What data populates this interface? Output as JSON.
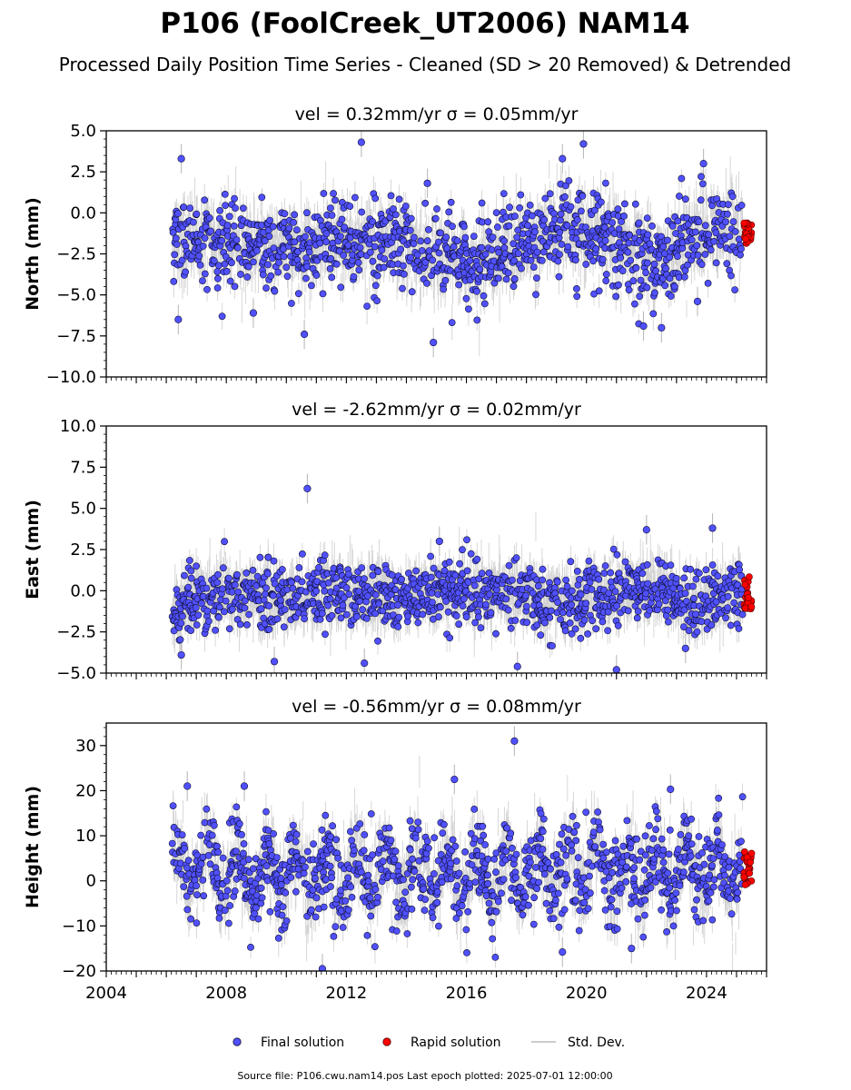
{
  "title": "P106 (FoolCreek_UT2006) NAM14",
  "subtitle": "Processed Daily Position Time Series - Cleaned (SD > 20 Removed) & Detrended",
  "footer": "Source file: P106.cwu.nam14.pos  Last epoch plotted: 2025-07-01 12:00:00",
  "colors": {
    "final_fill": "#5050ff",
    "final_edge": "#111133",
    "rapid_fill": "#ff0000",
    "rapid_edge": "#550000",
    "stddev": "#bbbbbb"
  },
  "chart_data": [
    {
      "type": "scatter",
      "panel": "north",
      "title": "vel = 0.32mm/yr   σ = 0.05mm/yr",
      "ylabel": "North (mm)",
      "xlim": [
        2004.0,
        2026.0
      ],
      "ylim": [
        -10.0,
        5.0
      ],
      "yticks": [
        -10.0,
        -7.5,
        -5.0,
        -2.5,
        0.0,
        2.5,
        5.0
      ],
      "ytick_labels": [
        "−10.0",
        "−7.5",
        "−5.0",
        "−2.5",
        "0.0",
        "2.5",
        "5.0"
      ],
      "xticks": [
        2004,
        2008,
        2012,
        2016,
        2020,
        2024
      ],
      "data_start": 2006.2,
      "data_end": 2025.2,
      "series": [
        {
          "name": "Final solution",
          "trend": [
            [
              2006.2,
              -1.5
            ],
            [
              2008.0,
              -1.8
            ],
            [
              2010.0,
              -2.1
            ],
            [
              2012.0,
              -1.8
            ],
            [
              2014.0,
              -2.1
            ],
            [
              2016.0,
              -3.0
            ],
            [
              2017.0,
              -2.6
            ],
            [
              2018.5,
              -1.4
            ],
            [
              2019.3,
              -0.8
            ],
            [
              2020.0,
              -1.5
            ],
            [
              2021.0,
              -2.0
            ],
            [
              2022.0,
              -2.6
            ],
            [
              2022.6,
              -3.0
            ],
            [
              2023.2,
              -1.5
            ],
            [
              2024.0,
              -1.3
            ],
            [
              2025.2,
              -1.0
            ]
          ],
          "noise": 1.3,
          "outliers": [
            [
              2006.5,
              3.3
            ],
            [
              2006.4,
              -6.5
            ],
            [
              2008.9,
              -6.1
            ],
            [
              2010.6,
              -7.4
            ],
            [
              2012.5,
              4.3
            ],
            [
              2014.9,
              -7.9
            ],
            [
              2014.7,
              1.8
            ],
            [
              2019.2,
              3.3
            ],
            [
              2019.9,
              4.2
            ],
            [
              2021.9,
              -6.9
            ],
            [
              2022.5,
              -7.0
            ],
            [
              2023.9,
              3.0
            ],
            [
              2023.7,
              -5.4
            ]
          ]
        },
        {
          "name": "Rapid solution",
          "x_range": [
            2025.25,
            2025.5
          ],
          "y_range": [
            -2.0,
            -0.6
          ]
        }
      ]
    },
    {
      "type": "scatter",
      "panel": "east",
      "title": "vel = -2.62mm/yr   σ = 0.02mm/yr",
      "ylabel": "East (mm)",
      "xlim": [
        2004.0,
        2026.0
      ],
      "ylim": [
        -5.0,
        10.0
      ],
      "yticks": [
        -5.0,
        -2.5,
        0.0,
        2.5,
        5.0,
        7.5,
        10.0
      ],
      "ytick_labels": [
        "−5.0",
        "−2.5",
        "0.0",
        "2.5",
        "5.0",
        "7.5",
        "10.0"
      ],
      "xticks": [
        2004,
        2008,
        2012,
        2016,
        2020,
        2024
      ],
      "data_start": 2006.2,
      "data_end": 2025.2,
      "series": [
        {
          "name": "Final solution",
          "trend": [
            [
              2006.2,
              -1.5
            ],
            [
              2006.6,
              -0.7
            ],
            [
              2008.0,
              -0.3
            ],
            [
              2010.0,
              -0.4
            ],
            [
              2012.0,
              -0.2
            ],
            [
              2014.0,
              -0.2
            ],
            [
              2016.0,
              -0.1
            ],
            [
              2018.0,
              -0.3
            ],
            [
              2019.5,
              -0.8
            ],
            [
              2021.0,
              0.0
            ],
            [
              2022.5,
              0.2
            ],
            [
              2023.5,
              -1.0
            ],
            [
              2024.5,
              -0.3
            ],
            [
              2025.2,
              -0.2
            ]
          ],
          "noise": 1.0,
          "outliers": [
            [
              2010.7,
              6.2
            ],
            [
              2015.1,
              3.0
            ],
            [
              2022.0,
              3.7
            ],
            [
              2024.2,
              3.8
            ],
            [
              2006.5,
              -3.9
            ],
            [
              2009.6,
              -4.3
            ],
            [
              2012.6,
              -4.4
            ],
            [
              2017.7,
              -4.6
            ],
            [
              2021.0,
              -4.8
            ],
            [
              2023.3,
              -3.5
            ]
          ]
        },
        {
          "name": "Rapid solution",
          "x_range": [
            2025.25,
            2025.5
          ],
          "y_range": [
            -1.3,
            1.0
          ]
        }
      ]
    },
    {
      "type": "scatter",
      "panel": "height",
      "title": "vel = -0.56mm/yr   σ = 0.08mm/yr",
      "ylabel": "Height (mm)",
      "xlim": [
        2004.0,
        2026.0
      ],
      "ylim": [
        -20.0,
        35.0
      ],
      "yticks": [
        -20,
        -10,
        0,
        10,
        20,
        30
      ],
      "ytick_labels": [
        "−20",
        "−10",
        "0",
        "10",
        "20",
        "30"
      ],
      "xticks": [
        2004,
        2008,
        2012,
        2016,
        2020,
        2024
      ],
      "xtick_labels": [
        "2004",
        "2008",
        "2012",
        "2016",
        "2020",
        "2024"
      ],
      "data_start": 2006.2,
      "data_end": 2025.2,
      "series": [
        {
          "name": "Final solution",
          "trend": [
            [
              2006.2,
              2.0
            ],
            [
              2025.2,
              2.0
            ]
          ],
          "seasonal_amplitude": 5.0,
          "noise": 5.0,
          "outliers": [
            [
              2017.6,
              31.0
            ],
            [
              2006.7,
              21.0
            ],
            [
              2008.6,
              21.0
            ],
            [
              2015.6,
              22.5
            ],
            [
              2011.2,
              -19.5
            ],
            [
              2019.2,
              -15.8
            ],
            [
              2021.5,
              -15.0
            ],
            [
              2022.8,
              20.3
            ]
          ]
        },
        {
          "name": "Rapid solution",
          "x_range": [
            2025.25,
            2025.5
          ],
          "y_range": [
            -1.0,
            6.5
          ]
        }
      ]
    }
  ],
  "legend": {
    "position": "bottom-center",
    "items": [
      {
        "label": "Final solution",
        "marker": "dot",
        "color": "#5050ff"
      },
      {
        "label": "Rapid solution",
        "marker": "dot",
        "color": "#ff0000"
      },
      {
        "label": "Std. Dev.",
        "marker": "line",
        "color": "#bbbbbb"
      }
    ]
  }
}
